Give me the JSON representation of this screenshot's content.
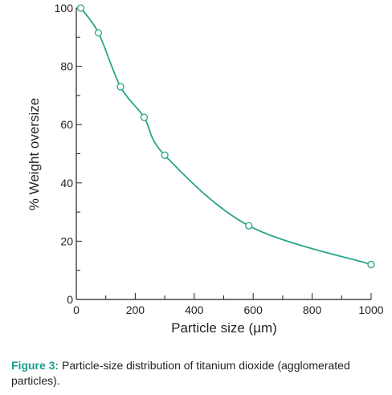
{
  "chart_data": {
    "type": "line",
    "title": "",
    "xlabel": "Particle size (µm)",
    "ylabel": "% Weight oversize",
    "xlim": [
      0,
      1000
    ],
    "ylim": [
      0,
      100
    ],
    "x_ticks": [
      0,
      200,
      400,
      600,
      800,
      1000
    ],
    "y_ticks": [
      0,
      20,
      40,
      60,
      80,
      100
    ],
    "grid": false,
    "legend": "none",
    "series": [
      {
        "x": [
          15,
          75,
          150,
          230,
          300,
          585,
          1000
        ],
        "y": [
          100,
          91.5,
          73,
          62.5,
          49.5,
          25.3,
          12
        ],
        "marker": "open-circle"
      }
    ]
  },
  "caption": {
    "label": "Figure 3:",
    "text": " Particle-size distribution of titanium dioxide (agglomerated particles)."
  },
  "colors": {
    "curve": "#2aa38c",
    "marker_stroke": "#2aa38c",
    "marker_fill": "#ffffff",
    "axis": "#231f20",
    "caption_label": "#1a9c8c"
  }
}
